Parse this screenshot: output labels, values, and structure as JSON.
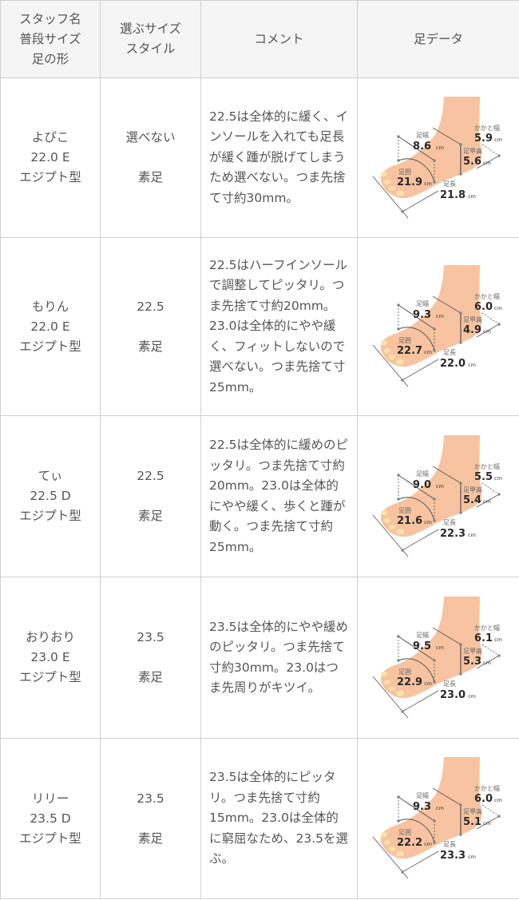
{
  "header": {
    "col1": [
      "スタッフ名",
      "普段サイズ",
      "足の形"
    ],
    "col2": [
      "選ぶサイズ",
      "スタイル"
    ],
    "col3": "コメント",
    "col4": "足データ"
  },
  "foot_labels": {
    "width": "足幅",
    "heel_width": "かかと幅",
    "instep_height": "足甲高",
    "girth": "足囲",
    "length": "足長",
    "unit": "cm"
  },
  "colors": {
    "skin": "#f7c3a0",
    "border": "#d0d0d0",
    "header_bg": "#f5f5f5",
    "text": "#555555"
  },
  "rows": [
    {
      "name": "よぴこ",
      "size": "22.0 E",
      "shape": "エジプト型",
      "choice": "選べない",
      "style": "素足",
      "comment": "22.5は全体的に緩く、インソールを入れても足長が緩く踵が脱げてしまうため選べない。つま先捨て寸約30mm。",
      "foot": {
        "width": "8.6",
        "heel_width": "5.9",
        "instep_height": "5.6",
        "girth": "21.9",
        "length": "21.8"
      }
    },
    {
      "name": "もりん",
      "size": "22.0 E",
      "shape": "エジプト型",
      "choice": "22.5",
      "style": "素足",
      "comment": "22.5はハーフインソールで調整してピッタリ。つま先捨て寸約20mm。23.0は全体的にやや緩く、フィットしないので選べない。つま先捨て寸25mm。",
      "foot": {
        "width": "9.3",
        "heel_width": "6.0",
        "instep_height": "4.9",
        "girth": "22.7",
        "length": "22.0"
      }
    },
    {
      "name": "てぃ",
      "size": "22.5 D",
      "shape": "エジプト型",
      "choice": "22.5",
      "style": "素足",
      "comment": "22.5は全体的に緩めのピッタリ。つま先捨て寸約20mm。23.0は全体的にやや緩く、歩くと踵が動く。つま先捨て寸約25mm。",
      "foot": {
        "width": "9.0",
        "heel_width": "5.5",
        "instep_height": "5.4",
        "girth": "21.6",
        "length": "22.3"
      }
    },
    {
      "name": "おりおり",
      "size": "23.0 E",
      "shape": "エジプト型",
      "choice": "23.5",
      "style": "素足",
      "comment": "23.5は全体的にやや緩めのピッタリ。つま先捨て寸約30mm。23.0はつま先周りがキツイ。",
      "foot": {
        "width": "9.5",
        "heel_width": "6.1",
        "instep_height": "5.3",
        "girth": "22.9",
        "length": "23.0"
      }
    },
    {
      "name": "リリー",
      "size": "23.5 D",
      "shape": "エジプト型",
      "choice": "23.5",
      "style": "素足",
      "comment": "23.5は全体的にピッタリ。つま先捨て寸約15mm。23.0は全体的に窮屈なため、23.5を選ぶ。",
      "foot": {
        "width": "9.3",
        "heel_width": "6.0",
        "instep_height": "5.1",
        "girth": "22.2",
        "length": "23.3"
      }
    }
  ]
}
